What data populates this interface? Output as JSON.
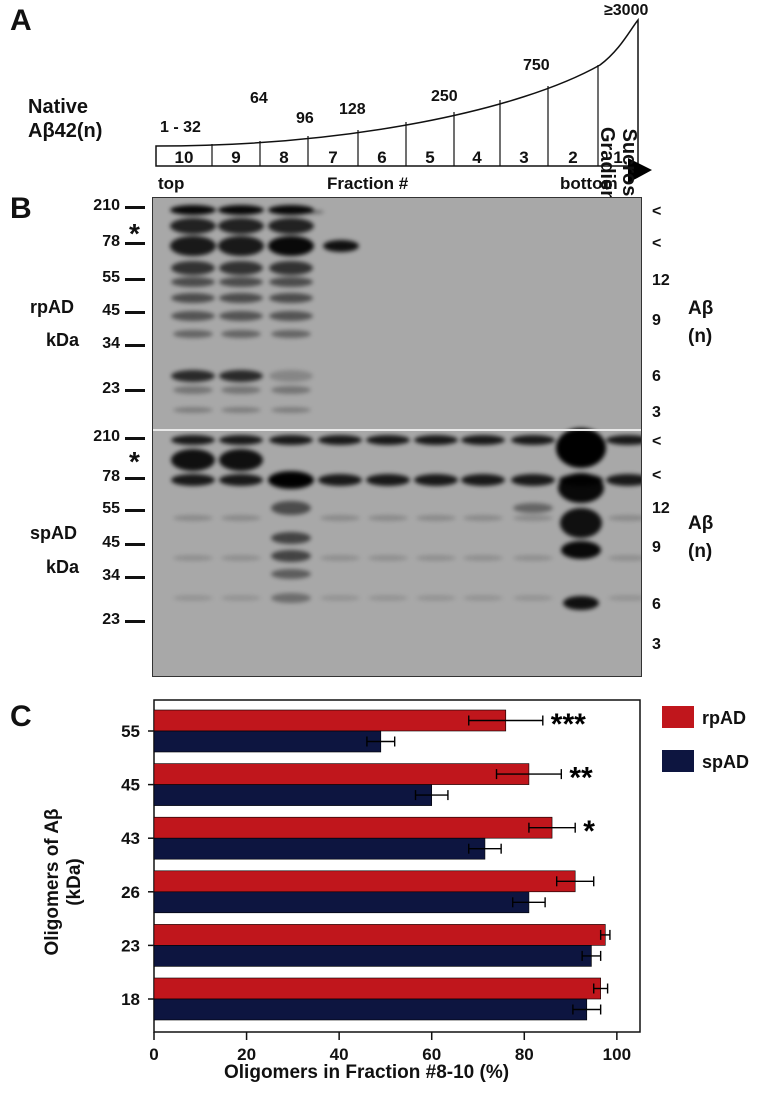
{
  "panel_labels": {
    "a": "A",
    "b": "B",
    "c": "C"
  },
  "panel_a": {
    "native_label_line1": "Native",
    "native_label_line2": "Aβ42(n)",
    "top_label": "top",
    "fraction_label": "Fraction #",
    "bottom_label": "bottom",
    "gradient_line1": "Sucrose",
    "gradient_line2": "Gradient",
    "fractions": [
      "10",
      "9",
      "8",
      "7",
      "6",
      "5",
      "4",
      "3",
      "2",
      "1"
    ],
    "oligomer_sizes": [
      "1 -  32",
      "64",
      "96",
      "128",
      "250",
      "750",
      "≥3000"
    ]
  },
  "panel_b": {
    "top_blot": {
      "group": "rpAD",
      "unit": "kDa",
      "markers": [
        "210",
        "78",
        "55",
        "45",
        "34",
        "23"
      ],
      "right_marks": [
        "<",
        "<",
        "12",
        "9",
        "6",
        "3"
      ],
      "ab_label": "Aβ",
      "n_label": "(n)",
      "asterisk": "*"
    },
    "bottom_blot": {
      "group": "spAD",
      "unit": "kDa",
      "markers": [
        "210",
        "78",
        "55",
        "45",
        "34",
        "23"
      ],
      "right_marks": [
        "<",
        "<",
        "12",
        "9",
        "6",
        "3"
      ],
      "ab_label": "Aβ",
      "n_label": "(n)",
      "asterisk": "*"
    }
  },
  "chart_data": {
    "type": "bar",
    "orientation": "horizontal",
    "categories": [
      "55",
      "45",
      "43",
      "26",
      "23",
      "18"
    ],
    "series": [
      {
        "name": "rpAD",
        "color": "#c0161c",
        "values": [
          76,
          81,
          86,
          91,
          97.5,
          96.5
        ],
        "errors": [
          8,
          7,
          5,
          4,
          1,
          1.5
        ]
      },
      {
        "name": "spAD",
        "color": "#0d1540",
        "values": [
          49,
          60,
          71.5,
          81,
          94.5,
          93.5
        ],
        "errors": [
          3,
          3.5,
          3.5,
          3.5,
          2,
          3
        ]
      }
    ],
    "significance": [
      "***",
      "**",
      "*",
      "",
      "",
      ""
    ],
    "xlabel": "Oligomers in Fraction #8-10 (%)",
    "ylabel_line1": "Oligomers of Aβ",
    "ylabel_line2": "(kDa)",
    "xlim": [
      0,
      105
    ],
    "xticks": [
      "0",
      "20",
      "40",
      "60",
      "80",
      "100"
    ],
    "legend_position": "top-right, outside plot",
    "grid": false
  }
}
